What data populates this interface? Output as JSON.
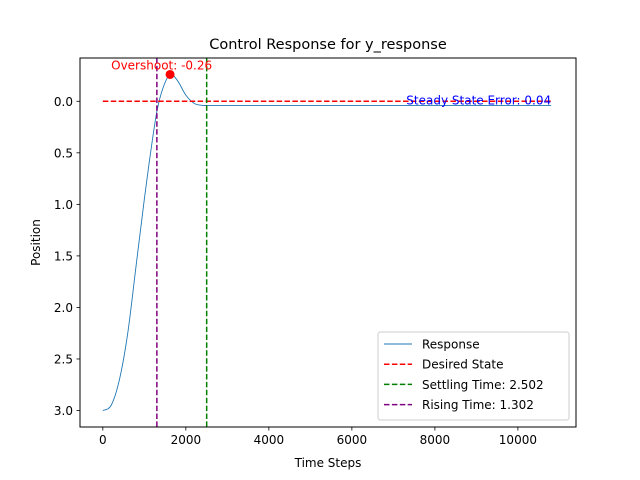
{
  "chart_data": {
    "type": "line",
    "title": "Control Response for y_response",
    "xlabel": "Time Steps",
    "ylabel": "Position",
    "xlim": [
      -550,
      11400
    ],
    "ylim": [
      3.16,
      -0.42
    ],
    "y_inverted": true,
    "x_ticks": [
      0,
      2000,
      4000,
      6000,
      8000,
      10000
    ],
    "x_tick_labels": [
      "0",
      "2000",
      "4000",
      "6000",
      "8000",
      "10000"
    ],
    "y_ticks": [
      0.0,
      0.5,
      1.0,
      1.5,
      2.0,
      2.5,
      3.0
    ],
    "y_tick_labels": [
      "0.0",
      "0.5",
      "1.0",
      "1.5",
      "2.0",
      "2.5",
      "3.0"
    ],
    "grid": false,
    "legend_position": "bottom-right",
    "series": [
      {
        "name": "Response",
        "style": "solid",
        "color": "#1f77b4",
        "x": [
          0,
          200,
          400,
          600,
          800,
          1000,
          1150,
          1302,
          1450,
          1620,
          1800,
          2000,
          2200,
          2400,
          2502,
          2700,
          3000,
          4000,
          6000,
          8000,
          10800
        ],
        "y": [
          3.0,
          2.95,
          2.7,
          2.25,
          1.6,
          0.95,
          0.5,
          0.1,
          -0.13,
          -0.26,
          -0.2,
          -0.06,
          0.02,
          0.04,
          0.04,
          0.04,
          0.04,
          0.04,
          0.04,
          0.04,
          0.04
        ]
      },
      {
        "name": "Desired State",
        "style": "dashed",
        "color": "#ff0000",
        "y_value": 0.0,
        "x_range": [
          0,
          10800
        ]
      },
      {
        "name": "Settling Time: 2.502",
        "style": "dashed",
        "color": "#008000",
        "x_value": 2502
      },
      {
        "name": "Rising Time: 1.302",
        "style": "dashed",
        "color": "#800080",
        "x_value": 1302
      }
    ],
    "markers": [
      {
        "x": 1620,
        "y": -0.26,
        "color": "#ff0000"
      }
    ],
    "annotations": [
      {
        "text": "Overshoot: -0.26",
        "x": 200,
        "y": -0.3,
        "color": "#ff0000",
        "anchor": "start"
      },
      {
        "text": "Steady State Error: 0.04",
        "x": 10800,
        "y": 0.04,
        "color": "#0000ff",
        "anchor": "end"
      }
    ]
  }
}
